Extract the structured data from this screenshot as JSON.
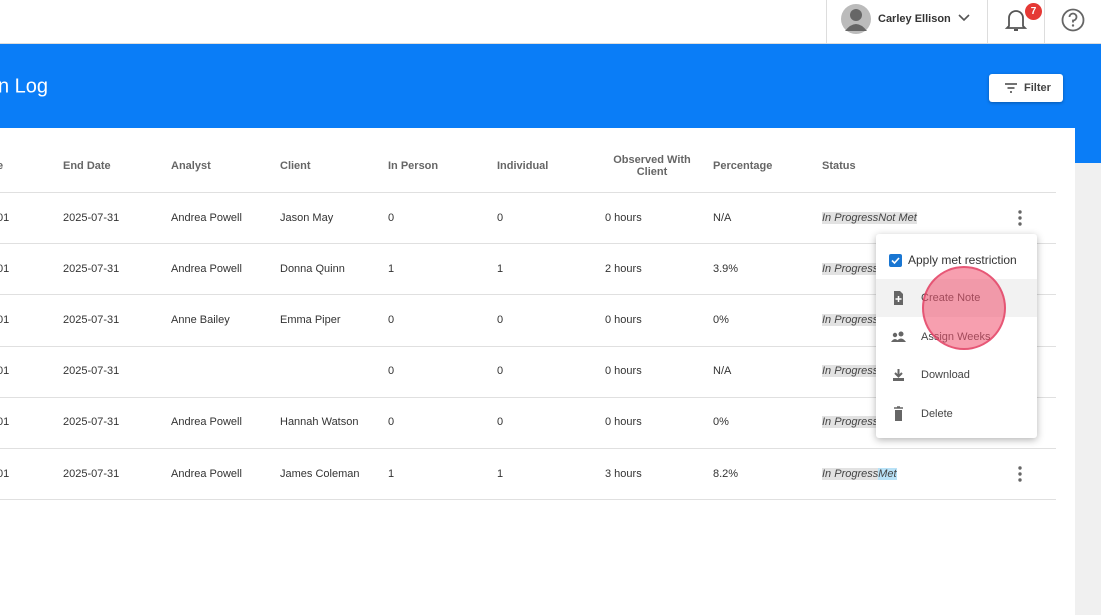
{
  "header": {
    "user_name": "Carley Ellison",
    "notification_count": "7",
    "page_title": "n Log",
    "filter_button": "Filter"
  },
  "table": {
    "columns": [
      "e",
      "End Date",
      "Analyst",
      "Client",
      "In Person",
      "Individual",
      "Observed With Client",
      "Percentage",
      "Status"
    ],
    "rows": [
      {
        "cells": [
          "01",
          "2025-07-31",
          "Andrea Powell",
          "Jason May",
          "0",
          "0",
          "0 hours",
          "N/A"
        ],
        "status": [
          "In Progress",
          "Not Met"
        ]
      },
      {
        "cells": [
          "01",
          "2025-07-31",
          "Andrea Powell",
          "Donna Quinn",
          "1",
          "1",
          "2 hours",
          "3.9%"
        ],
        "status": [
          "In Progress"
        ]
      },
      {
        "cells": [
          "01",
          "2025-07-31",
          "Anne Bailey",
          "Emma Piper",
          "0",
          "0",
          "0 hours",
          "0%"
        ],
        "status": [
          "In Progress"
        ]
      },
      {
        "cells": [
          "01",
          "2025-07-31",
          null,
          null,
          "0",
          "0",
          "0 hours",
          "N/A"
        ],
        "status": [
          "In Progress"
        ]
      },
      {
        "cells": [
          "01",
          "2025-07-31",
          "Andrea Powell",
          "Hannah Watson",
          "0",
          "0",
          "0 hours",
          "0%"
        ],
        "status": [
          "In Progress"
        ]
      },
      {
        "cells": [
          "01",
          "2025-07-31",
          "Andrea Powell",
          "James Coleman",
          "1",
          "1",
          "3 hours",
          "8.2%"
        ],
        "status": [
          "In Progress",
          "Met"
        ]
      }
    ]
  },
  "menu": {
    "checkbox_label": "Apply met restriction",
    "items": [
      "Create Note",
      "Assign Weeks",
      "Download",
      "Delete"
    ]
  }
}
